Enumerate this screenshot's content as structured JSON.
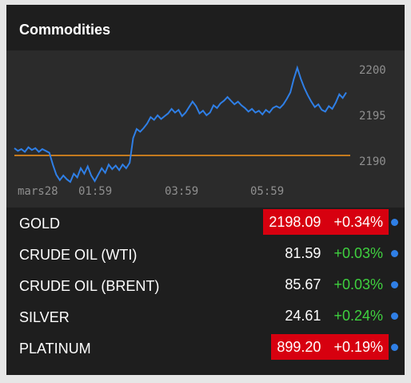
{
  "widget": {
    "title": "Commodities"
  },
  "chart_data": {
    "type": "line",
    "x_ticks": [
      "mars28",
      "01:59",
      "03:59",
      "05:59"
    ],
    "y_ticks": [
      2190,
      2195,
      2200
    ],
    "ylim": [
      2184.9,
      2202.1
    ],
    "reference_value": 2190.6,
    "series": [
      {
        "values": [
          2191.4,
          2191.1,
          2191.3,
          2191.0,
          2191.5,
          2191.2,
          2191.4,
          2191.0,
          2191.3,
          2191.1,
          2190.9,
          2189.6,
          2188.5,
          2187.9,
          2188.4,
          2188.0,
          2187.7,
          2188.6,
          2188.2,
          2189.2,
          2188.6,
          2189.4,
          2188.4,
          2187.8,
          2188.5,
          2189.2,
          2188.7,
          2189.6,
          2189.1,
          2189.5,
          2189.0,
          2189.6,
          2189.2,
          2189.8,
          2192.5,
          2193.5,
          2193.2,
          2193.6,
          2194.1,
          2194.8,
          2194.5,
          2195.0,
          2194.6,
          2194.9,
          2195.2,
          2195.7,
          2195.3,
          2195.6,
          2194.9,
          2195.3,
          2195.9,
          2196.5,
          2196.0,
          2195.2,
          2195.5,
          2195.0,
          2195.3,
          2196.1,
          2195.8,
          2196.3,
          2196.6,
          2197.0,
          2196.6,
          2196.2,
          2196.5,
          2196.1,
          2195.8,
          2195.4,
          2195.7,
          2195.3,
          2195.5,
          2195.1,
          2195.6,
          2195.3,
          2195.8,
          2196.0,
          2195.8,
          2196.2,
          2196.8,
          2197.5,
          2199.0,
          2200.2,
          2199.0,
          2198.0,
          2197.2,
          2196.5,
          2195.9,
          2196.2,
          2195.6,
          2195.4,
          2196.0,
          2195.7,
          2196.4,
          2197.3,
          2196.9,
          2197.5
        ]
      }
    ],
    "colors": {
      "line": "#2f7fe6",
      "reference": "#c47a1e",
      "ticks": "#8f8f8f"
    }
  },
  "quotes": [
    {
      "name": "GOLD",
      "price": "2198.09",
      "change": "+0.34%",
      "flash": true
    },
    {
      "name": "CRUDE OIL (WTI)",
      "price": "81.59",
      "change": "+0.03%",
      "flash": false
    },
    {
      "name": "CRUDE OIL (BRENT)",
      "price": "85.67",
      "change": "+0.03%",
      "flash": false
    },
    {
      "name": "SILVER",
      "price": "24.61",
      "change": "+0.24%",
      "flash": false
    },
    {
      "name": "PLATINUM",
      "price": "899.20",
      "change": "+0.19%",
      "flash": true
    }
  ],
  "colors": {
    "flash": "#d7000f",
    "positive": "#3fd13f",
    "dot": "#2f7fe6"
  },
  "icons": {
    "status_dot": "status-dot-icon"
  }
}
